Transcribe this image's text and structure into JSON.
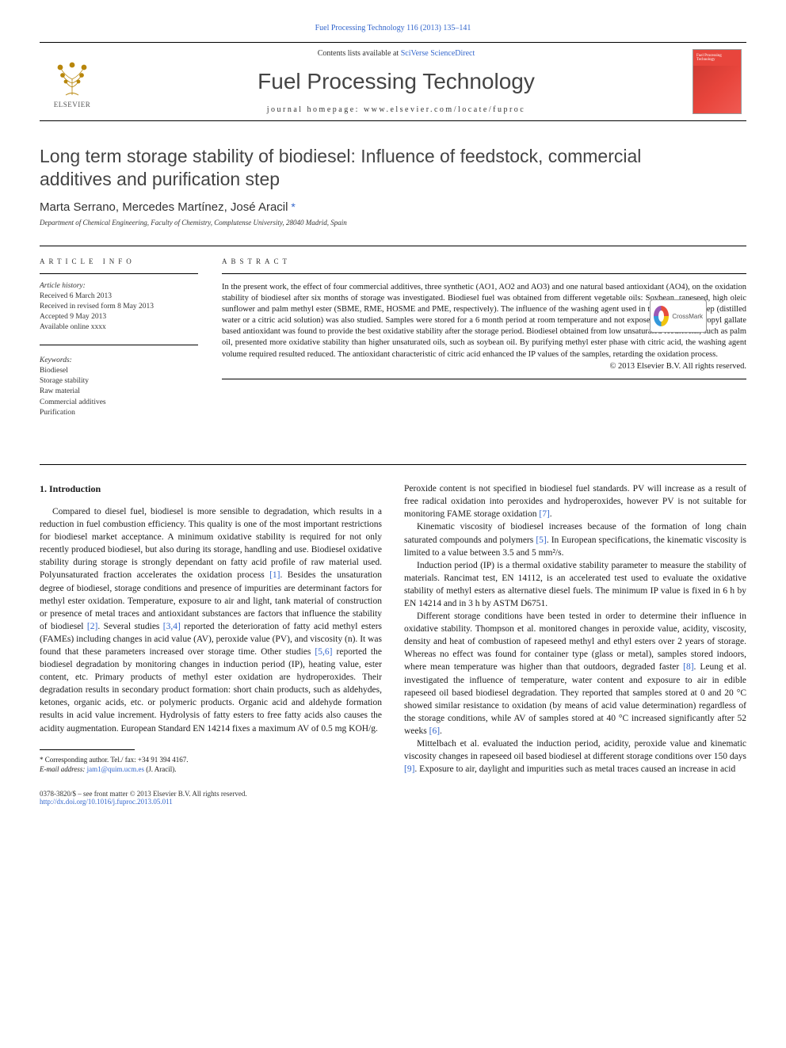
{
  "top_citation": "Fuel Processing Technology 116 (2013) 135–141",
  "header": {
    "contents_prefix": "Contents lists available at ",
    "contents_link": "SciVerse ScienceDirect",
    "journal_title": "Fuel Processing Technology",
    "homepage_label": "journal homepage: ",
    "homepage_url": "www.elsevier.com/locate/fuproc",
    "elsevier_label": "ELSEVIER",
    "cover_text": "Fuel Processing Technology"
  },
  "crossmark_label": "CrossMark",
  "article": {
    "title": "Long term storage stability of biodiesel: Influence of feedstock, commercial additives and purification step",
    "authors": "Marta Serrano, Mercedes Martínez, José Aracil",
    "corresponding_mark": " *",
    "affiliation": "Department of Chemical Engineering, Faculty of Chemistry, Complutense University, 28040 Madrid, Spain"
  },
  "article_info": {
    "heading": "ARTICLE INFO",
    "history_label": "Article history:",
    "history": [
      "Received 6 March 2013",
      "Received in revised form 8 May 2013",
      "Accepted 9 May 2013",
      "Available online xxxx"
    ],
    "keywords_label": "Keywords:",
    "keywords": [
      "Biodiesel",
      "Storage stability",
      "Raw material",
      "Commercial additives",
      "Purification"
    ]
  },
  "abstract": {
    "heading": "ABSTRACT",
    "text": "In the present work, the effect of four commercial additives, three synthetic (AO1, AO2 and AO3) and one natural based antioxidant (AO4), on the oxidation stability of biodiesel after six months of storage was investigated. Biodiesel fuel was obtained from different vegetable oils: Soybean, rapeseed, high oleic sunflower and palm methyl ester (SBME, RME, HOSME and PME, respectively). The influence of the washing agent used in the purification step (distilled water or a citric acid solution) was also studied. Samples were stored for a 6 month period at room temperature and not exposed to day light. Propyl gallate based antioxidant was found to provide the best oxidative stability after the storage period. Biodiesel obtained from low unsaturated feedstocks, such as palm oil, presented more oxidative stability than higher unsaturated oils, such as soybean oil. By purifying methyl ester phase with citric acid, the washing agent volume required resulted reduced. The antioxidant characteristic of citric acid enhanced the IP values of the samples, retarding the oxidation process.",
    "copyright": "© 2013 Elsevier B.V. All rights reserved."
  },
  "body": {
    "section_heading": "1. Introduction",
    "col1_paras": [
      "Compared to diesel fuel, biodiesel is more sensible to degradation, which results in a reduction in fuel combustion efficiency. This quality is one of the most important restrictions for biodiesel market acceptance. A minimum oxidative stability is required for not only recently produced biodiesel, but also during its storage, handling and use. Biodiesel oxidative stability during storage is strongly dependant on fatty acid profile of raw material used. Polyunsaturated fraction accelerates the oxidation process [1]. Besides the unsaturation degree of biodiesel, storage conditions and presence of impurities are determinant factors for methyl ester oxidation. Temperature, exposure to air and light, tank material of construction or presence of metal traces and antioxidant substances are factors that influence the stability of biodiesel [2]. Several studies [3,4] reported the deterioration of fatty acid methyl esters (FAMEs) including changes in acid value (AV), peroxide value (PV), and viscosity (n). It was found that these parameters increased over storage time. Other studies [5,6] reported the biodiesel degradation by monitoring changes in induction period (IP), heating value, ester content, etc. Primary products of methyl ester oxidation are hydroperoxides. Their degradation results in secondary product formation: short chain products, such as aldehydes, ketones, organic acids, etc. or polymeric products. Organic acid and aldehyde formation results in acid value increment. Hydrolysis of fatty esters to free fatty acids also causes the acidity augmentation. European Standard EN 14214 fixes a maximum AV of 0.5 mg KOH/g."
    ],
    "col2_paras": [
      "Peroxide content is not specified in biodiesel fuel standards. PV will increase as a result of free radical oxidation into peroxides and hydroperoxides, however PV is not suitable for monitoring FAME storage oxidation [7].",
      "Kinematic viscosity of biodiesel increases because of the formation of long chain saturated compounds and polymers [5]. In European specifications, the kinematic viscosity is limited to a value between 3.5 and 5 mm²/s.",
      "Induction period (IP) is a thermal oxidative stability parameter to measure the stability of materials. Rancimat test, EN 14112, is an accelerated test used to evaluate the oxidative stability of methyl esters as alternative diesel fuels. The minimum IP value is fixed in 6 h by EN 14214 and in 3 h by ASTM D6751.",
      "Different storage conditions have been tested in order to determine their influence in oxidative stability. Thompson et al. monitored changes in peroxide value, acidity, viscosity, density and heat of combustion of rapeseed methyl and ethyl esters over 2 years of storage. Whereas no effect was found for container type (glass or metal), samples stored indoors, where mean temperature was higher than that outdoors, degraded faster [8]. Leung et al. investigated the influence of temperature, water content and exposure to air in edible rapeseed oil based biodiesel degradation. They reported that samples stored at 0 and 20 °C showed similar resistance to oxidation (by means of acid value determination) regardless of the storage conditions, while AV of samples stored at 40 °C increased significantly after 52 weeks [6].",
      "Mittelbach et al. evaluated the induction period, acidity, peroxide value and kinematic viscosity changes in rapeseed oil based biodiesel at different storage conditions over 150 days [9]. Exposure to air, daylight and impurities such as metal traces caused an increase in acid"
    ]
  },
  "footnote": {
    "corresponding": "* Corresponding author. Tel./ fax: +34 91 394 4167.",
    "email_label": "E-mail address: ",
    "email": "jam1@quim.ucm.es",
    "email_suffix": " (J. Aracil)."
  },
  "bottom": {
    "issn_line": "0378-3820/$ – see front matter © 2013 Elsevier B.V. All rights reserved.",
    "doi": "http://dx.doi.org/10.1016/j.fuproc.2013.05.011"
  },
  "colors": {
    "link": "#3366cc",
    "cover_bg": "#e8453c",
    "text": "#1a1a1a"
  },
  "cites": {
    "c1": "[1]",
    "c2": "[2]",
    "c34": "[3,4]",
    "c56": "[5,6]",
    "c7": "[7]",
    "c5": "[5]",
    "c8": "[8]",
    "c6": "[6]",
    "c9": "[9]"
  }
}
